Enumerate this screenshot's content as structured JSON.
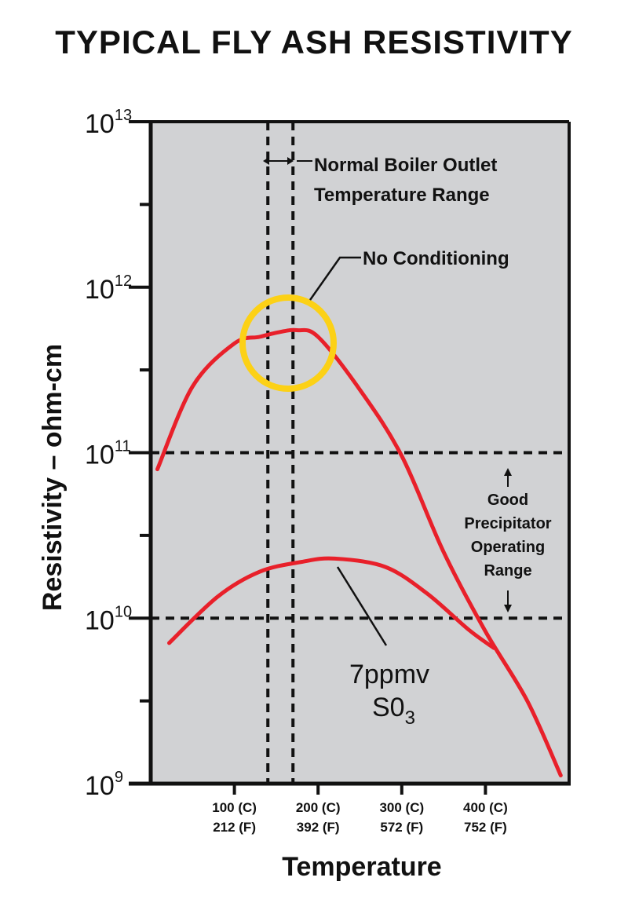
{
  "chart_data": {
    "type": "line",
    "title": "TYPICAL FLY ASH RESISTIVITY",
    "xlabel": "Temperature",
    "ylabel": "Resistivity – ohm-cm",
    "yscale": "log",
    "ylim_exp": [
      9,
      13
    ],
    "xlim_c": [
      0,
      500
    ],
    "ytick_labels": [
      {
        "exp": 13,
        "base": "10",
        "sup": "13"
      },
      {
        "exp": 12,
        "base": "10",
        "sup": "12"
      },
      {
        "exp": 11,
        "base": "10",
        "sup": "11"
      },
      {
        "exp": 10,
        "base": "10",
        "sup": "10"
      },
      {
        "exp": 9,
        "base": "10",
        "sup": "9"
      }
    ],
    "xtick_labels": [
      {
        "c": 100,
        "c_label": "100 (C)",
        "f_label": "212 (F)"
      },
      {
        "c": 200,
        "c_label": "200 (C)",
        "f_label": "392 (F)"
      },
      {
        "c": 300,
        "c_label": "300 (C)",
        "f_label": "572 (F)"
      },
      {
        "c": 400,
        "c_label": "400 (C)",
        "f_label": "752 (F)"
      }
    ],
    "series": [
      {
        "name": "No Conditioning",
        "color": "#e8202a",
        "x": [
          8,
          50,
          100,
          130,
          155,
          175,
          200,
          250,
          300,
          350,
          400,
          450,
          490
        ],
        "log_y": [
          10.9,
          11.4,
          11.66,
          11.7,
          11.73,
          11.74,
          11.7,
          11.38,
          10.98,
          10.4,
          9.92,
          9.5,
          9.05
        ]
      },
      {
        "name": "7ppmv SO3",
        "color": "#e8202a",
        "x": [
          22,
          80,
          130,
          180,
          220,
          280,
          330,
          380,
          410
        ],
        "log_y": [
          9.85,
          10.13,
          10.28,
          10.34,
          10.36,
          10.31,
          10.15,
          9.93,
          9.82
        ]
      }
    ],
    "reference_lines": {
      "horizontal_exp": [
        11,
        10
      ],
      "vertical_c": [
        140,
        170
      ]
    },
    "annotations": {
      "boiler_range_line1": "Normal Boiler Outlet",
      "boiler_range_line2": "Temperature Range",
      "no_conditioning": "No Conditioning",
      "good_line1": "Good",
      "good_line2": "Precipitator",
      "good_line3": "Operating",
      "good_line4": "Range",
      "so3_line1": "7ppmv",
      "so3_line2_base": "S0",
      "so3_line2_sub": "3"
    },
    "colors": {
      "plot_bg": "#d1d2d4",
      "curve": "#e8202a",
      "highlight": "#fcd116",
      "ink": "#111111"
    }
  }
}
